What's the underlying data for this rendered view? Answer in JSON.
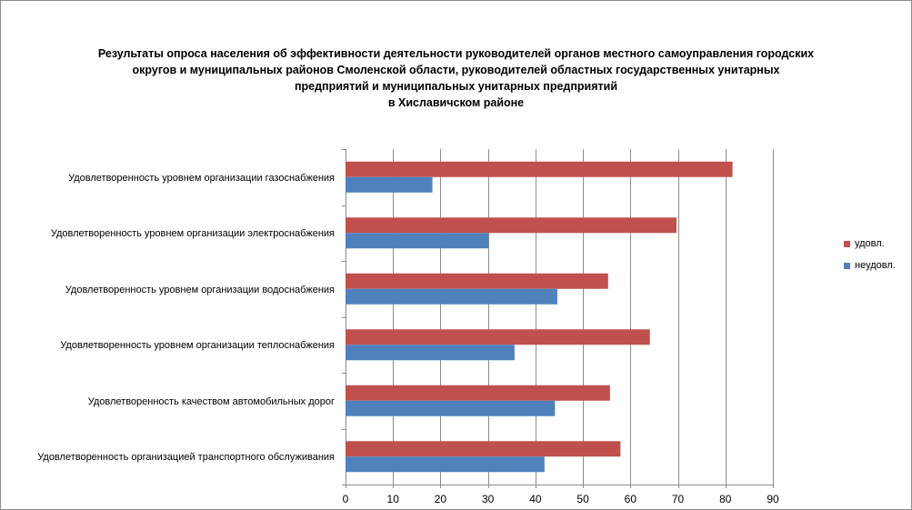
{
  "chart_data": {
    "type": "bar",
    "orientation": "horizontal",
    "title_lines": [
      "Результаты опроса населения об эффективности деятельности руководителей органов местного самоуправления городских",
      "округов и муниципальных районов Смоленской области, руководителей областных государственных унитарных",
      "предприятий и муниципальных унитарных предприятий",
      "в Хиславичском районе"
    ],
    "categories": [
      "Удовлетворенность  уровнем  организации газоснабжения",
      "Удовлетворенность  уровнем организации электроснабжения",
      "Удовлетворенность  уровнем  организации водоснабжения",
      "Удовлетворенность  уровнем  организации теплоснабжения",
      "Удовлетворенность  качеством  автомобильных дорог",
      "Удовлетворенность  организацией транспортного обслуживания"
    ],
    "series": [
      {
        "name": "удовл.",
        "color": "#C0504D",
        "values": [
          81.5,
          69.7,
          55.3,
          64.1,
          55.7,
          57.9
        ]
      },
      {
        "name": "неудовл.",
        "color": "#4F81BD",
        "values": [
          18.3,
          30.1,
          44.6,
          35.6,
          44.1,
          41.9
        ]
      }
    ],
    "xlim": [
      0,
      90
    ],
    "xticks": [
      "0",
      "10",
      "20",
      "30",
      "40",
      "50",
      "60",
      "70",
      "80",
      "90"
    ],
    "grid": true,
    "legend": "right"
  }
}
